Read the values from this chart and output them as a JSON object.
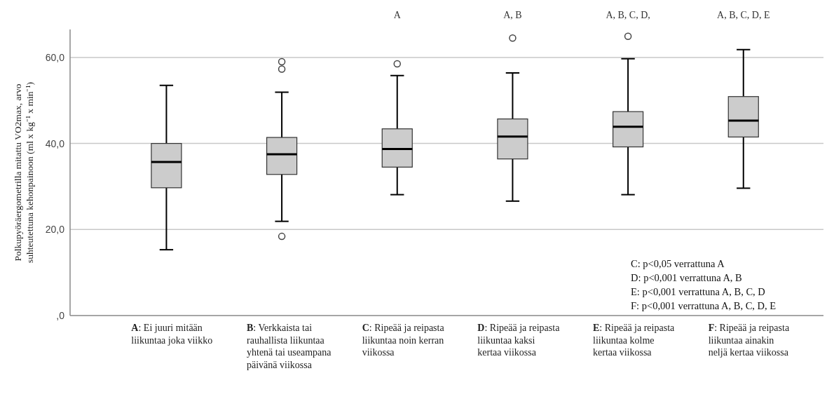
{
  "chart_data": {
    "type": "box",
    "ylabel": "Polkupyöräergometrilla mitattu VO2max, arvo suhteutettuna kehonpainoon (ml x kg⁻¹ x min⁻¹)",
    "categories": [
      "A: Ei juuri mitään liikuntaa joka viikko",
      "B: Verkkaista tai rauhallista liikuntaa yhtenä tai useampana päivänä viikossa",
      "C: Ripeää ja reipasta liikuntaa noin kerran viikossa",
      "D: Ripeää ja reipasta liikuntaa kaksi kertaa viikossa",
      "E: Ripeää ja reipasta liikuntaa kolme kertaa viikossa",
      "F: Ripeää ja reipasta liikuntaa ainakin neljä kertaa viikossa"
    ],
    "color": "#cccccc",
    "boxes": [
      {
        "low": 15.3,
        "q1": 29.7,
        "median": 35.7,
        "q3": 40,
        "high": 53.5
      },
      {
        "low": 21.9,
        "q1": 32.8,
        "median": 37.5,
        "q3": 41.4,
        "high": 51.9,
        "outliers": [
          59.0,
          57.3,
          18.4
        ]
      },
      {
        "low": 28.1,
        "q1": 34.5,
        "median": 38.7,
        "q3": 43.4,
        "high": 55.8,
        "outliers": [
          58.5
        ]
      },
      {
        "low": 26.6,
        "q1": 36.4,
        "median": 41.6,
        "q3": 45.7,
        "high": 56.4,
        "outliers": [
          64.5
        ]
      },
      {
        "low": 28.1,
        "q1": 39.2,
        "median": 43.9,
        "q3": 47.4,
        "high": 59.7,
        "outliers": [
          64.9
        ]
      },
      {
        "low": 29.6,
        "q1": 41.5,
        "median": 45.3,
        "q3": 50.9,
        "high": 61.8
      }
    ],
    "ylim": [
      0,
      66.5
    ],
    "yticks": [
      {
        "value": 0,
        "label": ",0"
      },
      {
        "value": 20,
        "label": "20,0"
      },
      {
        "value": 40,
        "label": "40,0"
      },
      {
        "value": 60,
        "label": "60,0"
      }
    ],
    "grid": "y",
    "annotations": [
      "A",
      "A, B",
      "A, B, C, D,",
      "A, B, C, D, E",
      "C: p<0,05 verrattuna A",
      "D: p<0,001 verrattuna A, B",
      "E: p<0,001 verrattuna A, B, C, D",
      "F: p<0,001 verrattuna A, B, C, D, E"
    ]
  }
}
